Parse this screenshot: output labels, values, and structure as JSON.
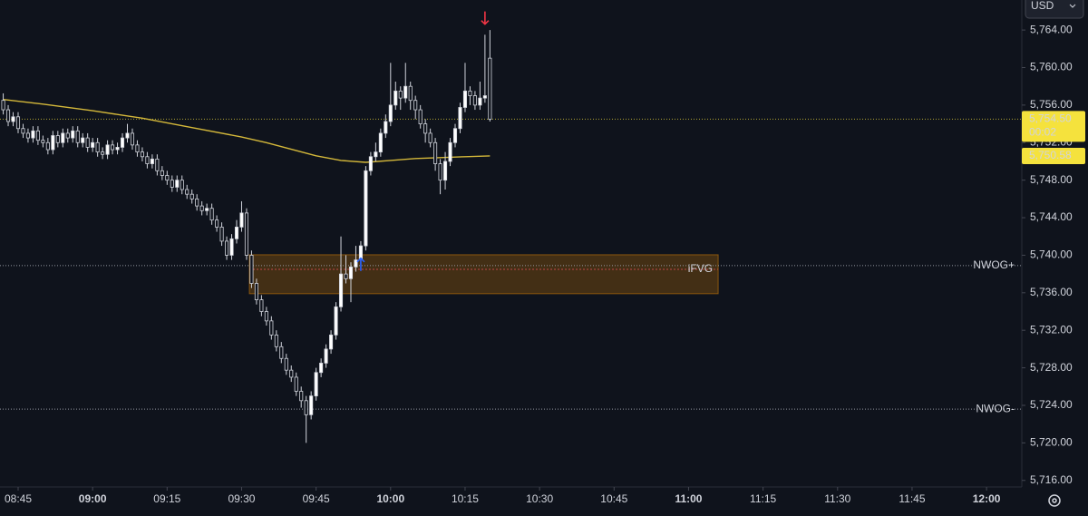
{
  "chart_data": {
    "type": "candlestick",
    "currency": "USD",
    "x": [
      522,
      523,
      524,
      525,
      526,
      527,
      528,
      529,
      530,
      531,
      532,
      533,
      534,
      535,
      536,
      537,
      538,
      539,
      540,
      541,
      542,
      543,
      544,
      545,
      546,
      547,
      548,
      549,
      550,
      551,
      552,
      553,
      554,
      555,
      556,
      557,
      558,
      559,
      560,
      561,
      562,
      563,
      564,
      565,
      566,
      567,
      568,
      569,
      570,
      571,
      572,
      573,
      574,
      575,
      576,
      577,
      578,
      579,
      580,
      581,
      582,
      583,
      584,
      585,
      586,
      587,
      588,
      589,
      590,
      591,
      592,
      593,
      594,
      595,
      596,
      597,
      598,
      599,
      600,
      601,
      602,
      603,
      604,
      605,
      606,
      607,
      608,
      609,
      610,
      611,
      612,
      613,
      614,
      615,
      616,
      617,
      618,
      619,
      620
    ],
    "open": [
      5756.5,
      5755.5,
      5754.25,
      5754.75,
      5753.5,
      5753.0,
      5752.5,
      5753.25,
      5752.25,
      5752.0,
      5751.25,
      5752.75,
      5752.0,
      5753.0,
      5752.5,
      5753.25,
      5752.0,
      5752.5,
      5751.5,
      5752.0,
      5751.0,
      5750.75,
      5751.75,
      5751.25,
      5751.5,
      5752.5,
      5753.0,
      5751.75,
      5751.0,
      5750.5,
      5749.75,
      5750.25,
      5749.0,
      5748.5,
      5748.0,
      5747.25,
      5748.0,
      5747.0,
      5746.5,
      5746.0,
      5745.25,
      5744.75,
      5745.0,
      5743.75,
      5743.0,
      5741.5,
      5740.0,
      5741.75,
      5743.0,
      5744.5,
      5740.0,
      5737.0,
      5735.25,
      5734.0,
      5733.0,
      5731.5,
      5730.25,
      5729.0,
      5727.75,
      5727.0,
      5725.5,
      5724.5,
      5723.0,
      5725.0,
      5727.5,
      5728.5,
      5730.0,
      5731.5,
      5734.5,
      5738.0,
      5737.5,
      5738.75,
      5739.5,
      5741.0,
      5749.0,
      5750.5,
      5751.0,
      5753.0,
      5754.25,
      5756.0,
      5757.5,
      5756.75,
      5758.0,
      5756.5,
      5755.5,
      5754.0,
      5753.0,
      5752.0,
      5749.75,
      5748.0,
      5750.0,
      5752.0,
      5753.5,
      5755.75,
      5757.5,
      5757.0,
      5756.0,
      5756.75,
      5761.0
    ],
    "high": [
      5757.25,
      5756.0,
      5755.25,
      5755.25,
      5754.0,
      5753.5,
      5753.75,
      5753.75,
      5752.75,
      5752.5,
      5753.25,
      5753.25,
      5753.5,
      5753.5,
      5753.75,
      5753.75,
      5753.0,
      5753.0,
      5752.5,
      5752.5,
      5751.5,
      5752.25,
      5752.25,
      5752.0,
      5753.0,
      5754.0,
      5753.5,
      5752.25,
      5751.5,
      5751.0,
      5750.75,
      5750.75,
      5749.5,
      5749.0,
      5748.5,
      5748.5,
      5748.5,
      5747.5,
      5747.0,
      5746.5,
      5745.75,
      5745.5,
      5745.5,
      5744.25,
      5743.5,
      5742.0,
      5742.25,
      5743.75,
      5745.75,
      5745.0,
      5740.5,
      5737.5,
      5735.75,
      5734.5,
      5733.5,
      5732.0,
      5730.75,
      5729.5,
      5728.25,
      5727.5,
      5726.0,
      5725.0,
      5725.5,
      5728.0,
      5729.0,
      5730.5,
      5732.0,
      5735.0,
      5742.0,
      5740.0,
      5739.25,
      5741.0,
      5741.5,
      5749.5,
      5751.0,
      5752.0,
      5753.5,
      5755.0,
      5760.5,
      5758.5,
      5758.0,
      5760.5,
      5758.5,
      5757.0,
      5756.0,
      5754.5,
      5753.5,
      5752.5,
      5750.25,
      5751.0,
      5752.5,
      5754.0,
      5756.25,
      5760.5,
      5758.0,
      5757.5,
      5758.5,
      5763.5,
      5764.0
    ],
    "low": [
      5755.0,
      5753.75,
      5753.75,
      5753.0,
      5752.5,
      5752.0,
      5752.0,
      5751.75,
      5751.5,
      5750.75,
      5750.75,
      5751.5,
      5751.5,
      5752.0,
      5752.0,
      5751.5,
      5751.5,
      5751.0,
      5751.0,
      5750.5,
      5750.25,
      5750.25,
      5750.75,
      5750.75,
      5751.0,
      5752.0,
      5751.25,
      5750.5,
      5750.0,
      5749.25,
      5749.25,
      5748.5,
      5748.0,
      5747.5,
      5746.75,
      5746.75,
      5746.5,
      5746.0,
      5745.5,
      5744.75,
      5744.25,
      5744.25,
      5743.25,
      5742.5,
      5741.0,
      5739.5,
      5739.5,
      5741.25,
      5742.5,
      5739.5,
      5736.5,
      5734.75,
      5733.5,
      5732.5,
      5731.0,
      5729.75,
      5728.5,
      5727.25,
      5726.5,
      5725.0,
      5723.75,
      5720.0,
      5722.5,
      5724.5,
      5727.0,
      5728.0,
      5729.5,
      5731.0,
      5734.0,
      5737.0,
      5735.0,
      5738.25,
      5739.0,
      5740.5,
      5748.5,
      5750.0,
      5750.5,
      5752.5,
      5753.75,
      5755.5,
      5755.5,
      5756.25,
      5755.5,
      5754.5,
      5753.5,
      5752.0,
      5751.5,
      5749.0,
      5746.5,
      5747.0,
      5749.5,
      5751.5,
      5753.0,
      5755.25,
      5756.0,
      5755.5,
      5755.5,
      5756.25,
      5754.25
    ],
    "close": [
      5755.5,
      5754.25,
      5754.75,
      5753.5,
      5753.0,
      5752.5,
      5753.25,
      5752.25,
      5752.0,
      5751.25,
      5752.75,
      5752.0,
      5753.0,
      5752.5,
      5753.25,
      5752.0,
      5752.5,
      5751.5,
      5752.0,
      5751.0,
      5750.75,
      5751.75,
      5751.25,
      5751.5,
      5752.5,
      5753.0,
      5751.75,
      5751.0,
      5750.5,
      5749.75,
      5750.25,
      5749.0,
      5748.5,
      5748.0,
      5747.25,
      5748.0,
      5747.0,
      5746.5,
      5746.0,
      5745.25,
      5744.75,
      5745.0,
      5743.75,
      5743.0,
      5741.5,
      5740.0,
      5741.75,
      5743.0,
      5744.5,
      5740.0,
      5737.0,
      5735.25,
      5734.0,
      5733.0,
      5731.5,
      5730.25,
      5729.0,
      5727.75,
      5727.0,
      5725.5,
      5724.5,
      5723.0,
      5725.0,
      5727.5,
      5728.5,
      5730.0,
      5731.5,
      5734.5,
      5738.0,
      5737.5,
      5738.75,
      5739.5,
      5741.0,
      5749.0,
      5750.5,
      5751.0,
      5753.0,
      5754.25,
      5756.0,
      5757.5,
      5756.75,
      5758.0,
      5756.5,
      5755.5,
      5754.0,
      5753.0,
      5752.0,
      5749.75,
      5748.0,
      5750.0,
      5752.0,
      5753.5,
      5755.75,
      5757.5,
      5757.0,
      5756.0,
      5756.75,
      5757.0,
      5754.5
    ],
    "up_color": "#ffffff",
    "down_color": "#0f131c",
    "wick_color": "#d1d4dc",
    "xlim": [
      521.35,
      727.1
    ],
    "xticks": [
      {
        "value": 525,
        "label": "08:45"
      },
      {
        "value": 540,
        "label": "09:00",
        "major": true
      },
      {
        "value": 555,
        "label": "09:15"
      },
      {
        "value": 570,
        "label": "09:30"
      },
      {
        "value": 585,
        "label": "09:45"
      },
      {
        "value": 600,
        "label": "10:00",
        "major": true
      },
      {
        "value": 615,
        "label": "10:15"
      },
      {
        "value": 630,
        "label": "10:30"
      },
      {
        "value": 645,
        "label": "10:45"
      },
      {
        "value": 660,
        "label": "11:00",
        "major": true
      },
      {
        "value": 675,
        "label": "11:15"
      },
      {
        "value": 690,
        "label": "11:30"
      },
      {
        "value": 705,
        "label": "11:45"
      },
      {
        "value": 720,
        "label": "12:00",
        "major": true
      }
    ],
    "ylim": [
      5715.3,
      5767.2
    ],
    "yticks": [
      {
        "value": 5716,
        "label": "5,716.00"
      },
      {
        "value": 5720,
        "label": "5,720.00"
      },
      {
        "value": 5724,
        "label": "5,724.00"
      },
      {
        "value": 5728,
        "label": "5,728.00"
      },
      {
        "value": 5732,
        "label": "5,732.00"
      },
      {
        "value": 5736,
        "label": "5,736.00"
      },
      {
        "value": 5740,
        "label": "5,740.00"
      },
      {
        "value": 5744,
        "label": "5,744.00"
      },
      {
        "value": 5748,
        "label": "5,748.00"
      },
      {
        "value": 5752,
        "label": "5,752.00"
      },
      {
        "value": 5756,
        "label": "5,756.00"
      },
      {
        "value": 5760,
        "label": "5,760.00"
      },
      {
        "value": 5764,
        "label": "5,764.00"
      }
    ],
    "grid": false,
    "ma": {
      "color": "#d4b83a",
      "x": [
        522,
        530,
        540,
        550,
        560,
        570,
        575,
        580,
        585,
        590,
        595,
        600,
        605,
        610,
        615,
        620
      ],
      "values": [
        5756.6,
        5756.1,
        5755.4,
        5754.6,
        5753.6,
        5752.6,
        5752.0,
        5751.3,
        5750.6,
        5750.1,
        5749.9,
        5750.1,
        5750.3,
        5750.4,
        5750.5,
        5750.58
      ]
    },
    "last_price": {
      "value": 5754.5,
      "label": "5,754.50",
      "countdown": "00:02",
      "color": "#f5e23d"
    },
    "ma_label": {
      "value": 5750.58,
      "label": "5,750.58",
      "color": "#f5e23d"
    },
    "levels": [
      {
        "value": 5738.9,
        "label": "NWOG+",
        "color": "#f0d13d"
      },
      {
        "value": 5723.6,
        "label": "NWOG-",
        "color": "#f0d13d"
      }
    ],
    "zones": [
      {
        "label": "iFVG",
        "x": [
          571.56,
          665.96
        ],
        "range": [
          5735.9,
          5740.05
        ],
        "mid": 5738.5,
        "color": "#ff9800",
        "label_color": "#f7525f"
      }
    ],
    "markers": [
      {
        "x": 619,
        "value": 5765.3,
        "direction": "down",
        "color": "#f23645"
      },
      {
        "x": 594,
        "value": 5739.0,
        "direction": "up",
        "color": "#2962ff"
      }
    ]
  }
}
